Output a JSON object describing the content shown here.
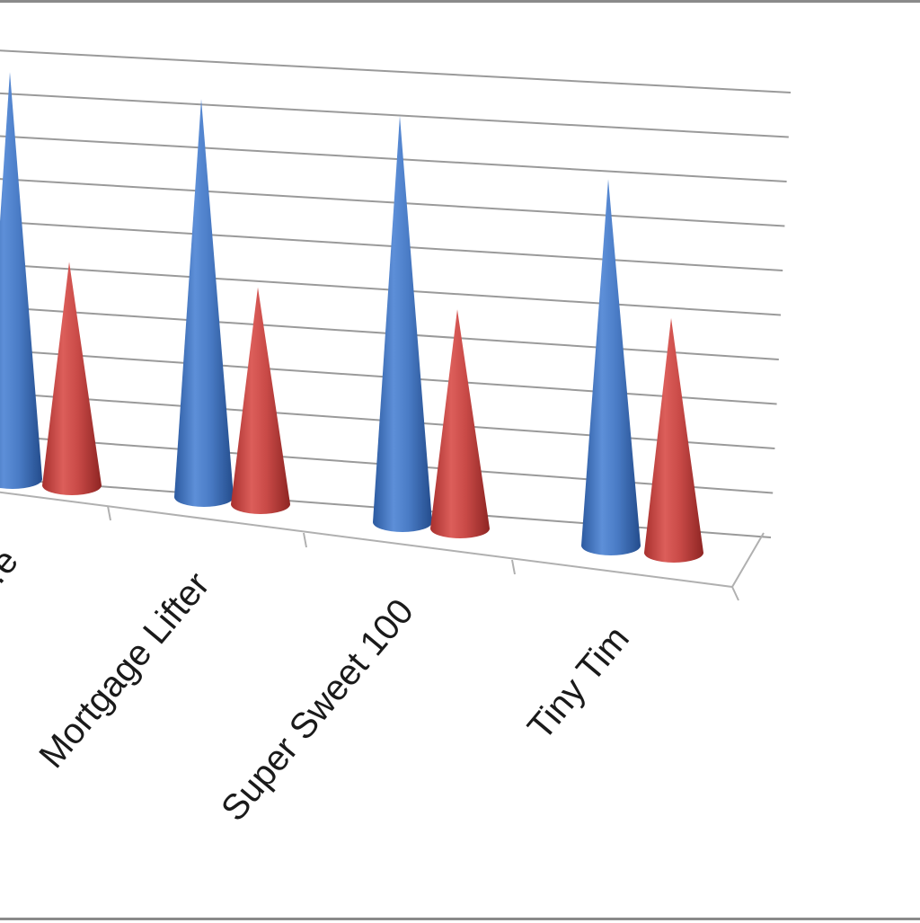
{
  "chart_data": {
    "type": "bar",
    "shape": "3d-cone",
    "categories": [
      "…e",
      "Mortgage Lifter",
      "Super Sweet 100",
      "Tiny Tim"
    ],
    "series": [
      {
        "values": [
          9.5,
          9.2,
          9.3,
          8.3
        ],
        "color": "#4f7fc8"
      },
      {
        "values": [
          5.2,
          5.0,
          5.0,
          5.3
        ],
        "color": "#c94a47"
      }
    ],
    "ylim": [
      0,
      10
    ],
    "grid": true,
    "legend": "none",
    "title": "",
    "xlabel": "",
    "ylabel": ""
  }
}
